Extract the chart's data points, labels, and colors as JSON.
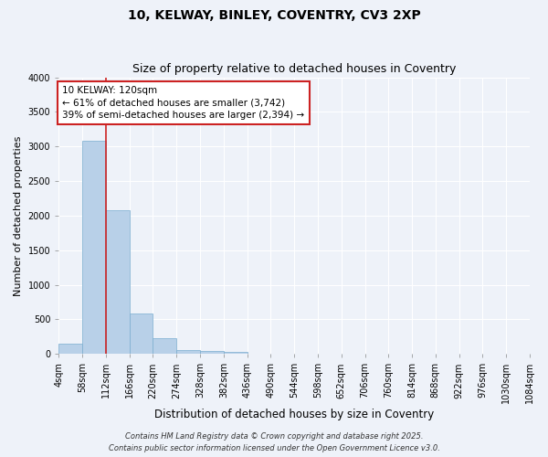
{
  "title1": "10, KELWAY, BINLEY, COVENTRY, CV3 2XP",
  "title2": "Size of property relative to detached houses in Coventry",
  "xlabel": "Distribution of detached houses by size in Coventry",
  "ylabel": "Number of detached properties",
  "bins": [
    "4sqm",
    "58sqm",
    "112sqm",
    "166sqm",
    "220sqm",
    "274sqm",
    "328sqm",
    "382sqm",
    "436sqm",
    "490sqm",
    "544sqm",
    "598sqm",
    "652sqm",
    "706sqm",
    "760sqm",
    "814sqm",
    "868sqm",
    "922sqm",
    "976sqm",
    "1030sqm",
    "1084sqm"
  ],
  "values": [
    150,
    3080,
    2080,
    580,
    230,
    60,
    40,
    30,
    0,
    0,
    0,
    0,
    0,
    0,
    0,
    0,
    0,
    0,
    0,
    0
  ],
  "bar_color": "#b8d0e8",
  "bar_edge_color": "#7aadcf",
  "vline_x_bin": 2,
  "vline_color": "#cc2222",
  "annotation_text": "10 KELWAY: 120sqm\n← 61% of detached houses are smaller (3,742)\n39% of semi-detached houses are larger (2,394) →",
  "annotation_box_facecolor": "#ffffff",
  "annotation_box_edgecolor": "#cc2222",
  "ylim": [
    0,
    4000
  ],
  "yticks": [
    0,
    500,
    1000,
    1500,
    2000,
    2500,
    3000,
    3500,
    4000
  ],
  "footer1": "Contains HM Land Registry data © Crown copyright and database right 2025.",
  "footer2": "Contains public sector information licensed under the Open Government Licence v3.0.",
  "bg_color": "#eef2f9",
  "grid_color": "#ffffff",
  "title1_fontsize": 10,
  "title2_fontsize": 9,
  "xlabel_fontsize": 8.5,
  "ylabel_fontsize": 8,
  "tick_fontsize": 7,
  "annot_fontsize": 7.5,
  "footer_fontsize": 6
}
